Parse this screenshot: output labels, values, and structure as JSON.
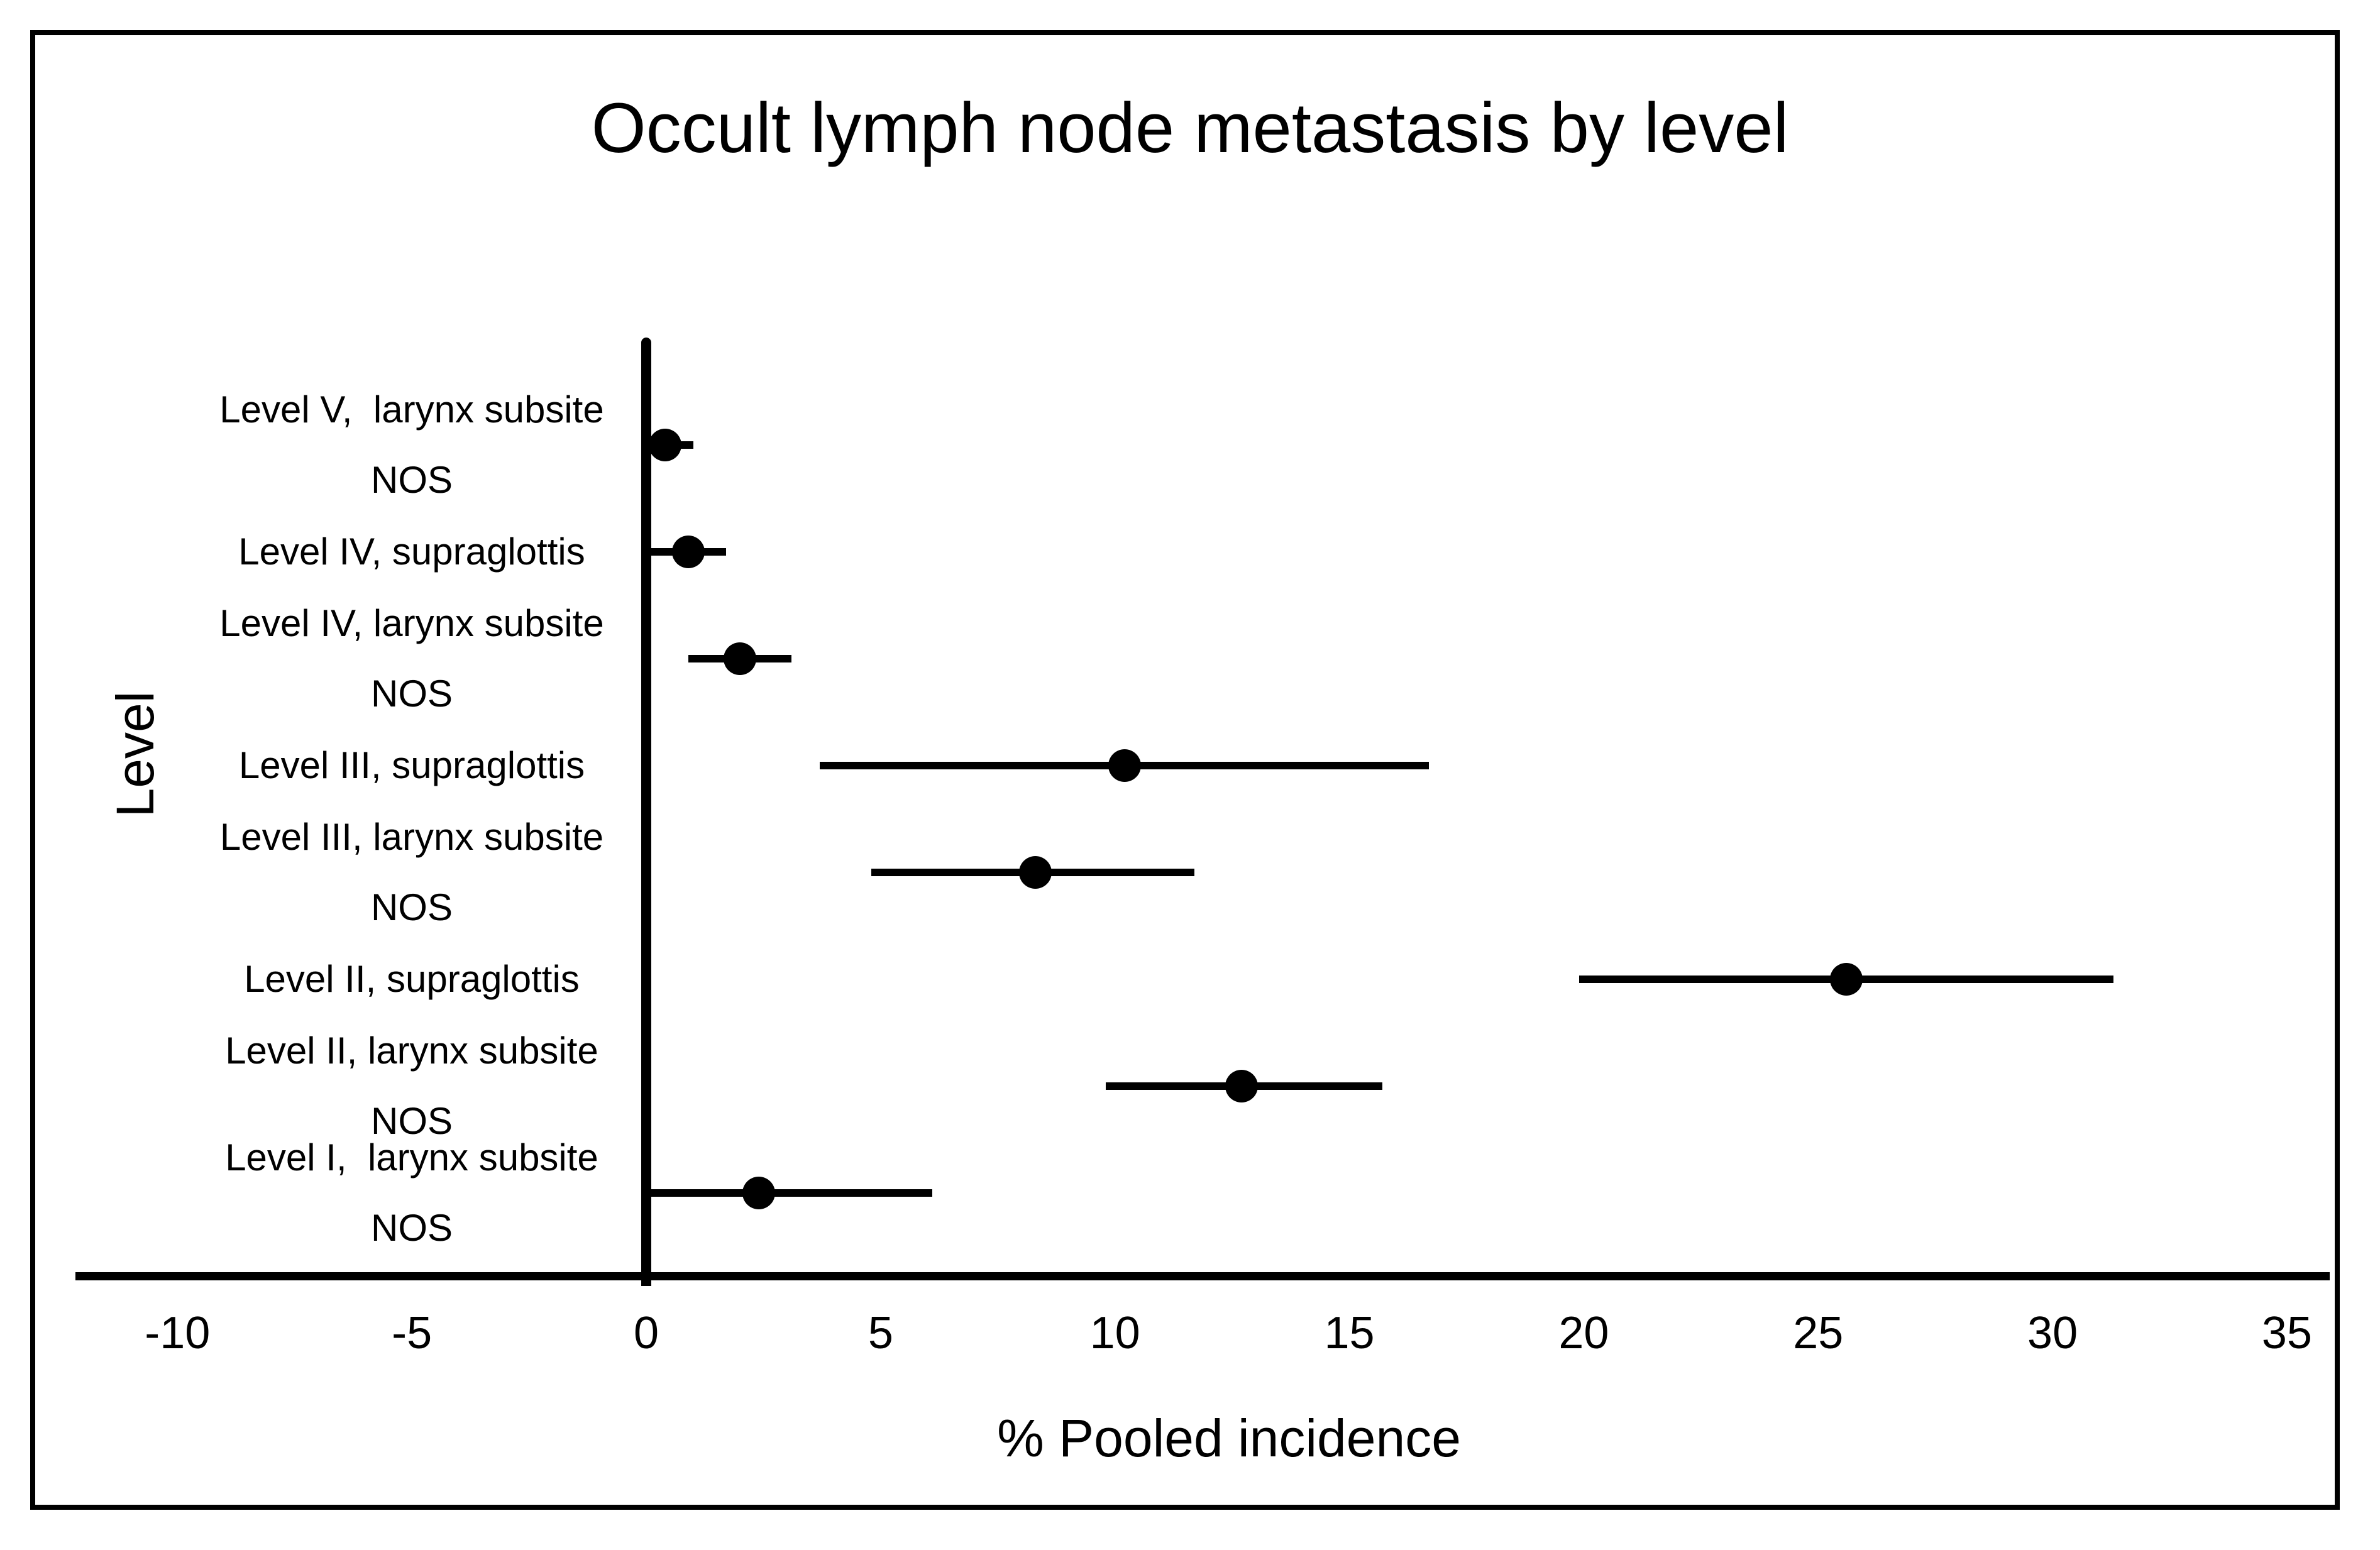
{
  "figure": {
    "title": "Occult lymph node metastasis by level",
    "x_axis_label": "% Pooled incidence",
    "y_axis_label": "Level"
  },
  "chart_data": {
    "type": "scatter",
    "subtype": "forest-plot-horizontal",
    "title": "Occult lymph node metastasis by level",
    "xlabel": "% Pooled incidence",
    "ylabel": "Level",
    "xlim": [
      -10,
      35
    ],
    "x_ticks": [
      "-10",
      "-5",
      "0",
      "5",
      "10",
      "15",
      "20",
      "25",
      "30",
      "35"
    ],
    "x_tick_values": [
      -10,
      -5,
      0,
      5,
      10,
      15,
      20,
      25,
      30,
      35
    ],
    "grid": false,
    "legend": "none",
    "marker_color": "#000000",
    "points": [
      {
        "label_lines": [
          "Level V,  larynx subsite",
          "NOS"
        ],
        "estimate": 0.4,
        "ci_low": 0.0,
        "ci_high": 1.0
      },
      {
        "label_lines": [
          "Level IV, supraglottis"
        ],
        "estimate": 0.9,
        "ci_low": 0.1,
        "ci_high": 1.7
      },
      {
        "label_lines": [
          "Level IV, larynx subsite",
          "NOS"
        ],
        "estimate": 2.0,
        "ci_low": 0.9,
        "ci_high": 3.1
      },
      {
        "label_lines": [
          "Level III, supraglottis"
        ],
        "estimate": 10.2,
        "ci_low": 3.7,
        "ci_high": 16.7
      },
      {
        "label_lines": [
          "Level III, larynx subsite",
          "NOS"
        ],
        "estimate": 8.3,
        "ci_low": 4.8,
        "ci_high": 11.7
      },
      {
        "label_lines": [
          "Level II, supraglottis"
        ],
        "estimate": 25.6,
        "ci_low": 19.9,
        "ci_high": 31.3
      },
      {
        "label_lines": [
          "Level II, larynx subsite",
          "NOS"
        ],
        "estimate": 12.7,
        "ci_low": 9.8,
        "ci_high": 15.7
      },
      {
        "label_lines": [
          "Level I,  larynx subsite",
          "NOS"
        ],
        "estimate": 2.4,
        "ci_low": 0.1,
        "ci_high": 6.1
      }
    ]
  }
}
